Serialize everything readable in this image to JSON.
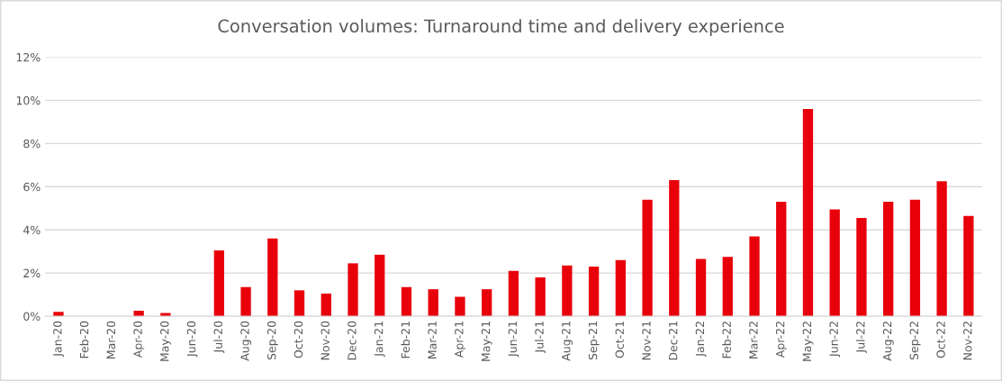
{
  "chart_data": {
    "type": "bar",
    "title": "Conversation volumes: Turnaround time and delivery experience",
    "categories": [
      "Jan-20",
      "Feb-20",
      "Mar-20",
      "Apr-20",
      "May-20",
      "Jun-20",
      "Jul-20",
      "Aug-20",
      "Sep-20",
      "Oct-20",
      "Nov-20",
      "Dec-20",
      "Jan-21",
      "Feb-21",
      "Mar-21",
      "Apr-21",
      "May-21",
      "Jun-21",
      "Jul-21",
      "Aug-21",
      "Sep-21",
      "Oct-21",
      "Nov-21",
      "Dec-21",
      "Jan-22",
      "Feb-22",
      "Mar-22",
      "Apr-22",
      "May-22",
      "Jun-22",
      "Jul-22",
      "Aug-22",
      "Sep-22",
      "Oct-22",
      "Nov-22"
    ],
    "values": [
      0.2,
      0,
      0,
      0.25,
      0.15,
      0,
      3.05,
      1.35,
      3.6,
      1.2,
      1.05,
      2.45,
      2.85,
      1.35,
      1.25,
      0.9,
      1.25,
      2.1,
      1.8,
      2.35,
      2.3,
      2.6,
      5.4,
      6.3,
      2.65,
      2.75,
      3.7,
      5.3,
      9.6,
      4.95,
      4.55,
      5.3,
      5.4,
      6.25,
      4.65
    ],
    "color": "#e8000b",
    "ylim": [
      0,
      12
    ],
    "yticks": [
      {
        "value": 0,
        "label": "0%"
      },
      {
        "value": 2,
        "label": "2%"
      },
      {
        "value": 4,
        "label": "4%"
      },
      {
        "value": 6,
        "label": "6%"
      },
      {
        "value": 8,
        "label": "8%"
      },
      {
        "value": 10,
        "label": "10%"
      },
      {
        "value": 12,
        "label": "12%"
      }
    ],
    "grid": "y"
  }
}
